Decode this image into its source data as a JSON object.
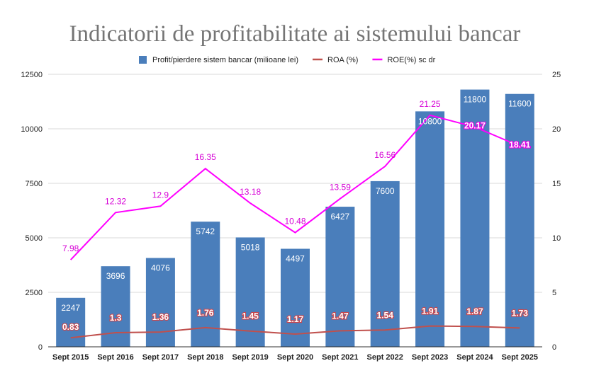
{
  "chart_data": {
    "type": "bar",
    "title": "Indicatorii de profitabilitate ai sistemului bancar",
    "categories": [
      "Sept 2015",
      "Sept 2016",
      "Sept 2017",
      "Sept 2018",
      "Sept 2019",
      "Sept 2020",
      "Sept 2021",
      "Sept 2022",
      "Sept 2023",
      "Sept 2024",
      "Sept 2025"
    ],
    "series": [
      {
        "name": "Profit/pierdere sistem bancar (milioane lei)",
        "type": "bar",
        "axis": "left",
        "color": "#4a7ebb",
        "values": [
          2247,
          3696,
          4076,
          5742,
          5018,
          4497,
          6427,
          7600,
          10800,
          11800,
          11600
        ]
      },
      {
        "name": "ROA (%)",
        "type": "line",
        "axis": "right",
        "color": "#c0504d",
        "values": [
          0.83,
          1.3,
          1.36,
          1.76,
          1.45,
          1.17,
          1.47,
          1.54,
          1.91,
          1.87,
          1.73
        ]
      },
      {
        "name": "ROE(%) sc dr",
        "type": "line",
        "axis": "right",
        "color": "#ff00ff",
        "values": [
          7.98,
          12.32,
          12.9,
          16.35,
          13.18,
          10.48,
          13.59,
          16.56,
          21.25,
          20.17,
          18.41
        ]
      }
    ],
    "y_left": {
      "min": 0,
      "max": 12500,
      "ticks": [
        0,
        2500,
        5000,
        7500,
        10000,
        12500
      ]
    },
    "y_right": {
      "min": 0,
      "max": 25,
      "ticks": [
        0,
        5,
        10,
        15,
        20,
        25
      ]
    },
    "grid": true,
    "legend": "top"
  }
}
